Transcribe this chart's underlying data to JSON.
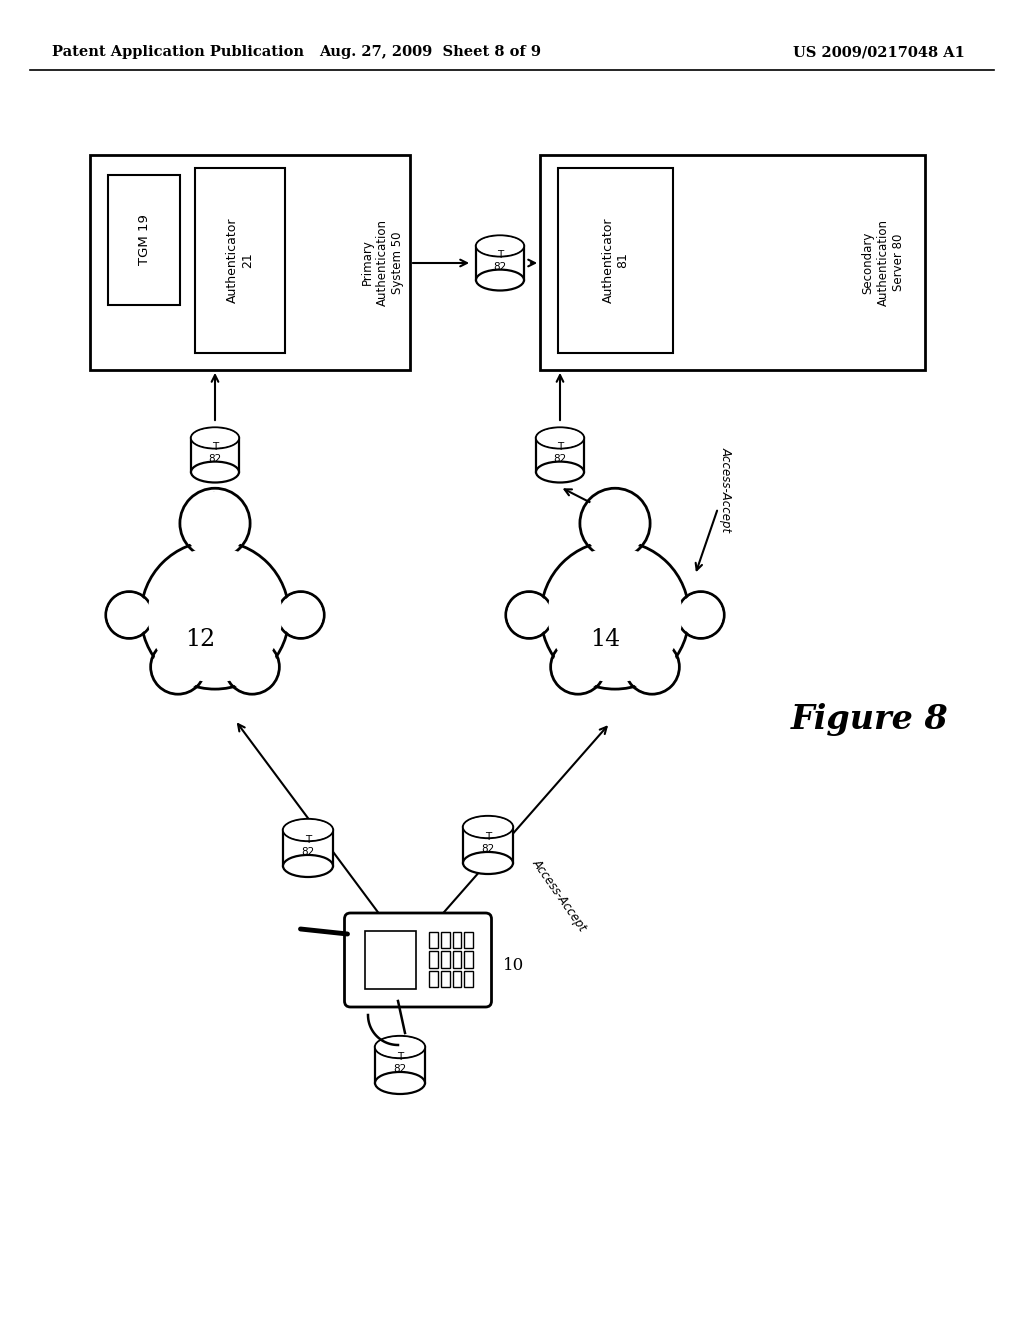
{
  "bg_color": "#ffffff",
  "header_left": "Patent Application Publication",
  "header_center": "Aug. 27, 2009  Sheet 8 of 9",
  "header_right": "US 2009/0217048 A1",
  "figure_label": "Figure 8",
  "cloud1_label": "12",
  "cloud2_label": "14",
  "device_label": "10",
  "access_accept": "Access-Accept"
}
